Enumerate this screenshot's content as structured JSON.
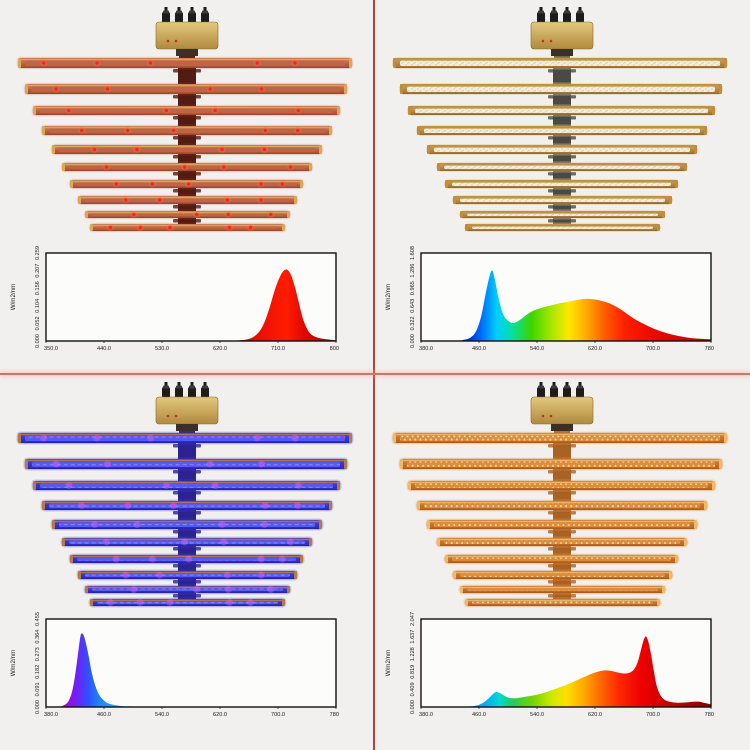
{
  "page": {
    "background": "#f1f0ee",
    "divider_vertical_color": "#b0453c",
    "divider_horizontal_color": "#cf7468"
  },
  "chart_data": [
    {
      "id": "deep-red-spectrum",
      "type": "area",
      "title": "",
      "xlabel": "",
      "ylabel": "W/m2/nm",
      "xlim": [
        350,
        800
      ],
      "ylim": [
        0,
        0.259
      ],
      "x_ticks": [
        "350.0",
        "440.0",
        "530.0",
        "620.0",
        "710.0",
        "800"
      ],
      "y_ticks": [
        "0.000",
        "0.052",
        "0.104",
        "0.156",
        "0.207",
        "0.259"
      ],
      "peak_nm": 724,
      "peak_value": 0.21,
      "points": [
        [
          350,
          0
        ],
        [
          600,
          0
        ],
        [
          640,
          0.001
        ],
        [
          660,
          0.004
        ],
        [
          672,
          0.012
        ],
        [
          682,
          0.03
        ],
        [
          690,
          0.06
        ],
        [
          698,
          0.105
        ],
        [
          705,
          0.15
        ],
        [
          712,
          0.185
        ],
        [
          718,
          0.205
        ],
        [
          724,
          0.21
        ],
        [
          730,
          0.195
        ],
        [
          736,
          0.16
        ],
        [
          742,
          0.115
        ],
        [
          748,
          0.07
        ],
        [
          754,
          0.04
        ],
        [
          760,
          0.022
        ],
        [
          768,
          0.012
        ],
        [
          778,
          0.007
        ],
        [
          790,
          0.004
        ],
        [
          800,
          0.002
        ]
      ],
      "gradient": [
        [
          0.0,
          "#c00000"
        ],
        [
          0.65,
          "#cc0000"
        ],
        [
          0.74,
          "#ee0f00"
        ],
        [
          0.83,
          "#ff1c00"
        ],
        [
          0.9,
          "#dd0300"
        ],
        [
          1.0,
          "#990000"
        ]
      ]
    },
    {
      "id": "warm-white-full-spectrum",
      "type": "area",
      "title": "",
      "xlabel": "",
      "ylabel": "W/m2/nm",
      "xlim": [
        380,
        780
      ],
      "ylim": [
        0,
        1.608
      ],
      "x_ticks": [
        "380.0",
        "460.0",
        "540.0",
        "620.0",
        "700.0",
        "780"
      ],
      "y_ticks": [
        "0.000",
        "0.322",
        "0.643",
        "0.965",
        "1.286",
        "1.608"
      ],
      "peak_nm": 478,
      "peak_value": 1.29,
      "points": [
        [
          380,
          0
        ],
        [
          430,
          0.005
        ],
        [
          438,
          0.02
        ],
        [
          448,
          0.06
        ],
        [
          456,
          0.18
        ],
        [
          463,
          0.45
        ],
        [
          469,
          0.85
        ],
        [
          474,
          1.15
        ],
        [
          478,
          1.29
        ],
        [
          482,
          1.12
        ],
        [
          487,
          0.78
        ],
        [
          493,
          0.5
        ],
        [
          500,
          0.37
        ],
        [
          508,
          0.33
        ],
        [
          518,
          0.4
        ],
        [
          528,
          0.5
        ],
        [
          538,
          0.57
        ],
        [
          550,
          0.62
        ],
        [
          565,
          0.67
        ],
        [
          580,
          0.71
        ],
        [
          595,
          0.75
        ],
        [
          607,
          0.77
        ],
        [
          618,
          0.76
        ],
        [
          630,
          0.73
        ],
        [
          643,
          0.67
        ],
        [
          655,
          0.58
        ],
        [
          668,
          0.46
        ],
        [
          680,
          0.36
        ],
        [
          695,
          0.26
        ],
        [
          710,
          0.18
        ],
        [
          725,
          0.12
        ],
        [
          740,
          0.08
        ],
        [
          755,
          0.05
        ],
        [
          780,
          0.03
        ]
      ],
      "gradient": [
        [
          0.0,
          "#0015c8"
        ],
        [
          0.17,
          "#0030e8"
        ],
        [
          0.22,
          "#0080ff"
        ],
        [
          0.26,
          "#00ccff"
        ],
        [
          0.31,
          "#00e0a8"
        ],
        [
          0.38,
          "#3cd400"
        ],
        [
          0.45,
          "#a8e600"
        ],
        [
          0.51,
          "#ffe800"
        ],
        [
          0.57,
          "#ffaa00"
        ],
        [
          0.63,
          "#ff6000"
        ],
        [
          0.7,
          "#ff2000"
        ],
        [
          0.8,
          "#ee0600"
        ],
        [
          1.0,
          "#c00000"
        ]
      ]
    },
    {
      "id": "violet-uv-spectrum",
      "type": "area",
      "title": "",
      "xlabel": "",
      "ylabel": "W/m2/nm",
      "xlim": [
        380,
        780
      ],
      "ylim": [
        0,
        0.455
      ],
      "x_ticks": [
        "380.0",
        "460.0",
        "540.0",
        "620.0",
        "700.0",
        "780"
      ],
      "y_ticks": [
        "0.000",
        "0.091",
        "0.182",
        "0.273",
        "0.364",
        "0.455"
      ],
      "peak_nm": 429,
      "peak_value": 0.38,
      "points": [
        [
          380,
          0
        ],
        [
          398,
          0.002
        ],
        [
          405,
          0.01
        ],
        [
          411,
          0.03
        ],
        [
          416,
          0.08
        ],
        [
          420,
          0.16
        ],
        [
          424,
          0.27
        ],
        [
          427,
          0.355
        ],
        [
          429,
          0.38
        ],
        [
          432,
          0.37
        ],
        [
          435,
          0.33
        ],
        [
          439,
          0.26
        ],
        [
          443,
          0.18
        ],
        [
          448,
          0.11
        ],
        [
          453,
          0.065
        ],
        [
          458,
          0.04
        ],
        [
          464,
          0.022
        ],
        [
          472,
          0.012
        ],
        [
          482,
          0.006
        ],
        [
          495,
          0.003
        ],
        [
          540,
          0.001
        ],
        [
          780,
          0
        ]
      ],
      "gradient": [
        [
          0.0,
          "#d400c8"
        ],
        [
          0.05,
          "#b000d8"
        ],
        [
          0.09,
          "#8812ee"
        ],
        [
          0.12,
          "#5a30f8"
        ],
        [
          0.145,
          "#3050ff"
        ],
        [
          0.18,
          "#2080ff"
        ],
        [
          0.24,
          "#28a8ff"
        ],
        [
          0.4,
          "#30b8ff"
        ]
      ]
    },
    {
      "id": "full-spectrum-red-boost",
      "type": "area",
      "title": "",
      "xlabel": "",
      "ylabel": "W/m2/nm",
      "xlim": [
        380,
        780
      ],
      "ylim": [
        0,
        2.047
      ],
      "x_ticks": [
        "380.0",
        "460.0",
        "540.0",
        "620.0",
        "700.0",
        "780"
      ],
      "y_ticks": [
        "0.000",
        "0.409",
        "0.819",
        "1.228",
        "1.637",
        "2.047"
      ],
      "peak_nm": 690,
      "peak_value": 1.64,
      "points": [
        [
          380,
          0
        ],
        [
          440,
          0.01
        ],
        [
          455,
          0.03
        ],
        [
          465,
          0.09
        ],
        [
          472,
          0.18
        ],
        [
          478,
          0.28
        ],
        [
          483,
          0.345
        ],
        [
          488,
          0.33
        ],
        [
          494,
          0.27
        ],
        [
          500,
          0.22
        ],
        [
          508,
          0.2
        ],
        [
          518,
          0.22
        ],
        [
          528,
          0.25
        ],
        [
          538,
          0.28
        ],
        [
          550,
          0.33
        ],
        [
          562,
          0.4
        ],
        [
          575,
          0.48
        ],
        [
          588,
          0.57
        ],
        [
          600,
          0.66
        ],
        [
          612,
          0.75
        ],
        [
          622,
          0.81
        ],
        [
          632,
          0.85
        ],
        [
          642,
          0.84
        ],
        [
          652,
          0.8
        ],
        [
          660,
          0.78
        ],
        [
          668,
          0.8
        ],
        [
          674,
          0.88
        ],
        [
          679,
          1.05
        ],
        [
          683,
          1.3
        ],
        [
          687,
          1.55
        ],
        [
          690,
          1.64
        ],
        [
          693,
          1.55
        ],
        [
          697,
          1.25
        ],
        [
          701,
          0.85
        ],
        [
          705,
          0.5
        ],
        [
          710,
          0.28
        ],
        [
          716,
          0.17
        ],
        [
          724,
          0.12
        ],
        [
          734,
          0.1
        ],
        [
          744,
          0.105
        ],
        [
          754,
          0.12
        ],
        [
          762,
          0.125
        ],
        [
          770,
          0.1
        ],
        [
          780,
          0.06
        ]
      ],
      "gradient": [
        [
          0.0,
          "#0090ff"
        ],
        [
          0.22,
          "#00aaff"
        ],
        [
          0.27,
          "#00d8d0"
        ],
        [
          0.32,
          "#28cc50"
        ],
        [
          0.39,
          "#7ed400"
        ],
        [
          0.45,
          "#cce800"
        ],
        [
          0.5,
          "#ffe000"
        ],
        [
          0.56,
          "#ffaa00"
        ],
        [
          0.62,
          "#ff6600"
        ],
        [
          0.68,
          "#ff2a00"
        ],
        [
          0.76,
          "#ee0000"
        ],
        [
          0.88,
          "#c00000"
        ],
        [
          1.0,
          "#8a0000"
        ]
      ]
    }
  ],
  "quadrants": [
    {
      "name": "deep-red-led-bar-light",
      "position": "top-left",
      "chart_index": 0,
      "fixture": {
        "style": "glow-sparse",
        "bar_frame": "#d9a85a",
        "body_top": "#d4805a",
        "body_bottom": "#a84a30",
        "strip": "#bf6545",
        "outline": "rgba(70,20,5,0.35)",
        "led_dot": "#ff2516",
        "led_glow": "#ff6a4a",
        "bar_glow": "#ff6a4a",
        "bar_glow_opacity": 0.12,
        "spine": "#521c12",
        "driver_top": "#e3c87e",
        "driver_bottom": "#b08a3e",
        "knob": "#1c1c1c"
      }
    },
    {
      "name": "warm-white-3000k-bar-light",
      "position": "top-right",
      "chart_index": 1,
      "fixture": {
        "style": "speckle",
        "bar_frame": "#c08c3f",
        "body_top": "#d8a85c",
        "body_bottom": "#9a6f2e",
        "strip": "#f2ecdc",
        "speck": "#b4a077",
        "outline": "rgba(80,55,10,0.4)",
        "led_dot": "#f7f0da",
        "led_glow": "#fff0c0",
        "bar_glow": "#fff0c0",
        "bar_glow_opacity": 0.35,
        "spine": "#4c4944",
        "driver_top": "#e3c87e",
        "driver_bottom": "#b08a3e",
        "knob": "#1c1c1c"
      }
    },
    {
      "name": "violet-uv-led-bar-light",
      "position": "bottom-left",
      "chart_index": 2,
      "fixture": {
        "style": "glow-dash",
        "bar_frame": "#b87a40",
        "body_top": "#4443e8",
        "body_bottom": "#2a28b8",
        "strip": "#5a58f5",
        "dash": "#8c8cff",
        "outline": "rgba(10,10,60,0.4)",
        "led_dot": "#c44df0",
        "led_glow": "#d580ff",
        "bar_glow": "#5050ff",
        "bar_glow_opacity": 0.25,
        "spine": "#2c2390",
        "driver_top": "#e3c87e",
        "driver_bottom": "#b08a3e",
        "knob": "#1c1c1c"
      }
    },
    {
      "name": "full-spectrum-orange-bar-light",
      "position": "bottom-right",
      "chart_index": 3,
      "fixture": {
        "style": "dot-rows",
        "bar_frame": "#f0b86a",
        "body_top": "#d98336",
        "body_bottom": "#b5621f",
        "strip": "#de8c3a",
        "dot_color": "#ffe2b2",
        "outline": "rgba(90,40,0,0.4)",
        "led_dot": "#ffe2b2",
        "led_glow": "#ffb060",
        "bar_glow": "#ffb060",
        "bar_glow_opacity": 0.3,
        "spine": "#a86224",
        "driver_top": "#e3c87e",
        "driver_bottom": "#b08a3e",
        "knob": "#1c1c1c"
      }
    }
  ]
}
